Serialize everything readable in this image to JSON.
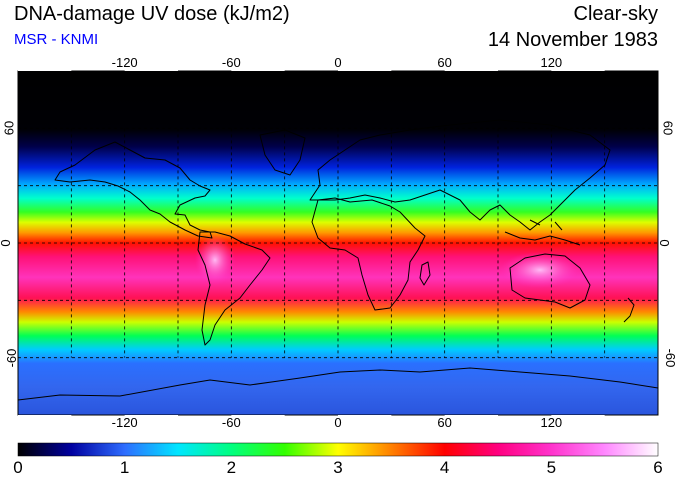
{
  "header": {
    "title": "DNA-damage UV dose (kJ/m2)",
    "source": "MSR - KNMI",
    "condition": "Clear-sky",
    "date": "14 November 1983"
  },
  "map": {
    "longitude_ticks": [
      "-120",
      "-60",
      "0",
      "60",
      "120"
    ],
    "latitude_ticks": [
      "60",
      "0",
      "-60"
    ],
    "longitude_range": [
      -180,
      180
    ],
    "latitude_range": [
      -90,
      90
    ],
    "gridlines": "dashed every 30 degrees",
    "projection": "equirectangular",
    "colors": {
      "background": "#000000",
      "coastline": "#000000",
      "grid": "#000000"
    }
  },
  "colorbar": {
    "labels": [
      "0",
      "1",
      "2",
      "3",
      "4",
      "5",
      "6"
    ],
    "range": [
      0,
      6
    ],
    "stops": [
      "#000000",
      "#0000a0",
      "#2e6dff",
      "#00e6ff",
      "#00ff80",
      "#33ff00",
      "#ffff00",
      "#ff8000",
      "#ff0000",
      "#ff0080",
      "#ff33cc",
      "#ff88ff",
      "#ffffff"
    ]
  }
}
